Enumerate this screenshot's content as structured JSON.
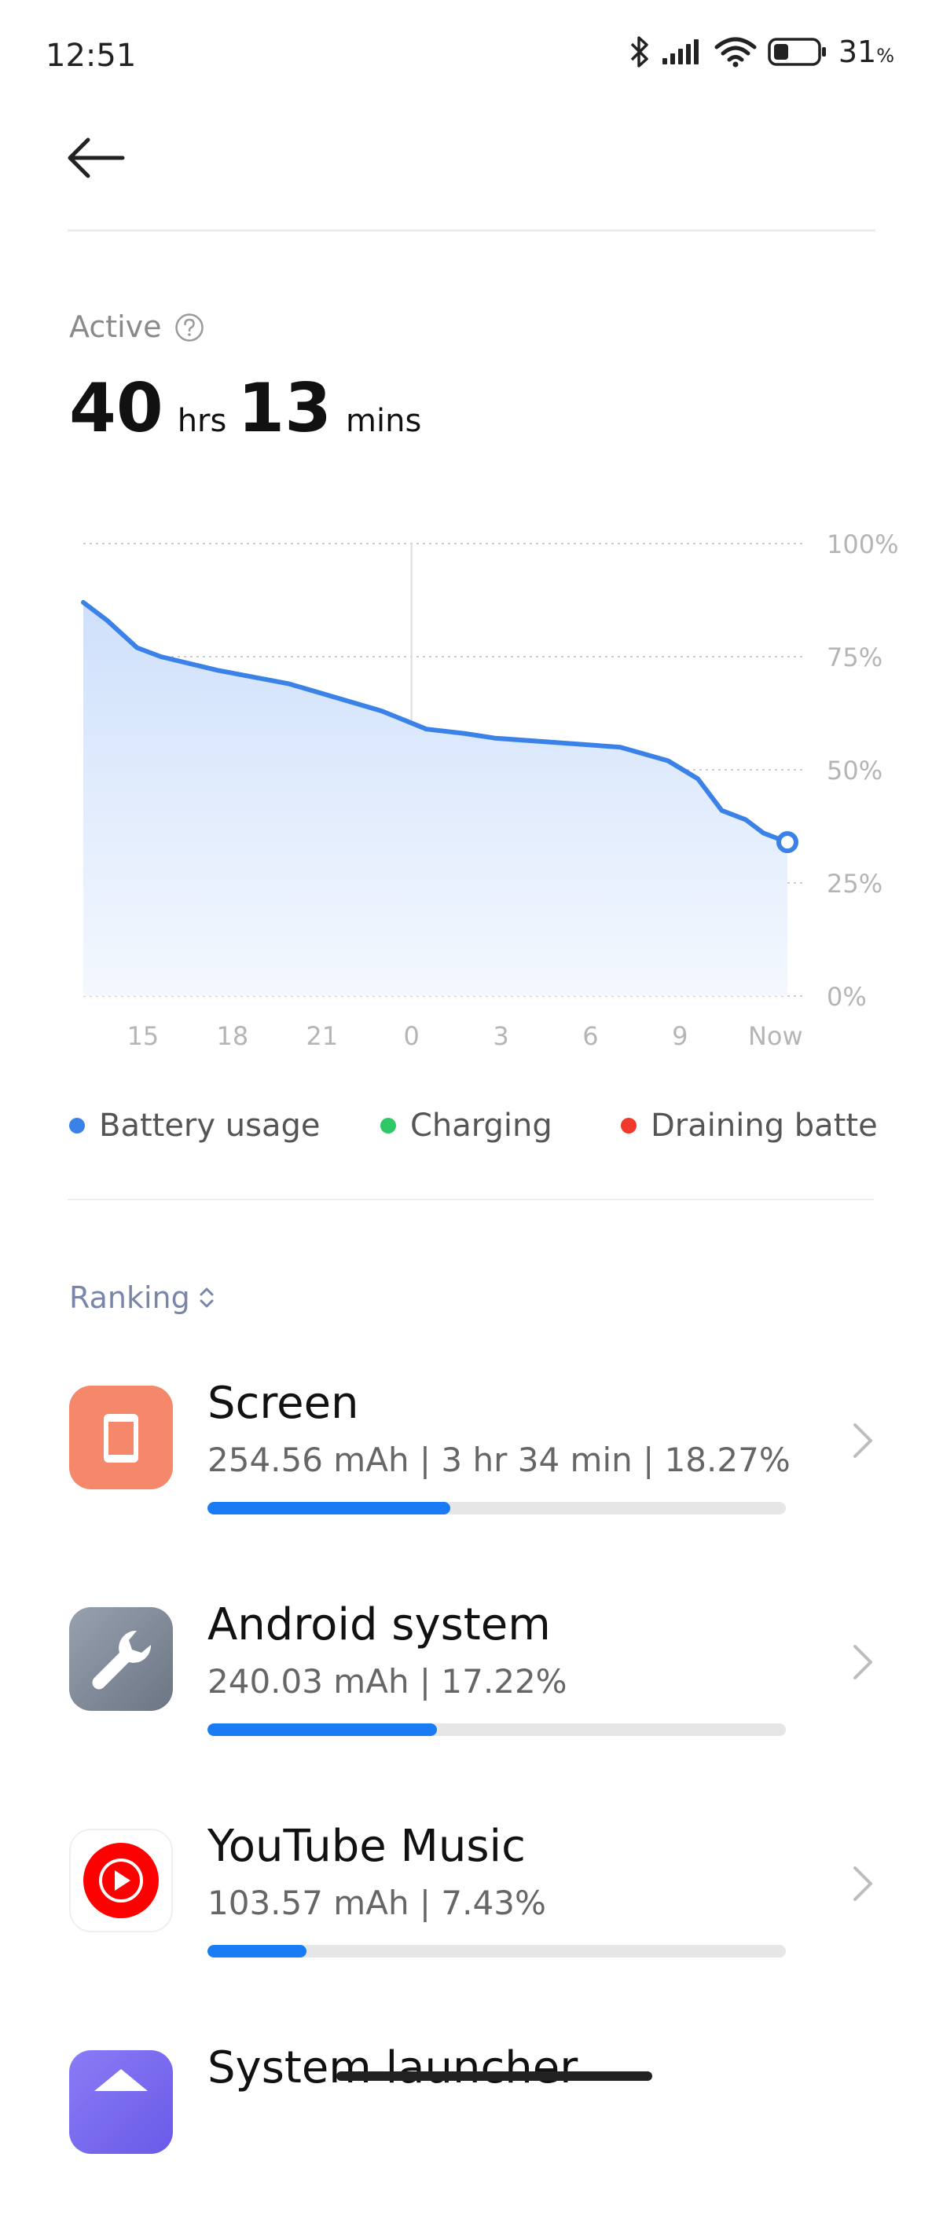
{
  "status_bar": {
    "time": "12:51",
    "battery_percent": "31",
    "battery_percent_sign": "%",
    "icons": [
      "bluetooth-icon",
      "signal-icon",
      "wifi-icon",
      "battery-icon"
    ]
  },
  "header": {
    "back_icon": "back-arrow-icon"
  },
  "active": {
    "label": "Active",
    "help_icon": "help-icon",
    "hours": "40",
    "hours_unit": "hrs",
    "minutes": "13",
    "minutes_unit": "mins"
  },
  "chart_data": {
    "type": "area",
    "x_tick_labels": [
      "15",
      "18",
      "21",
      "0",
      "3",
      "6",
      "9",
      "Now"
    ],
    "y_tick_labels": [
      "100%",
      "75%",
      "50%",
      "25%",
      "0%"
    ],
    "ylim": [
      0,
      100
    ],
    "grid": true,
    "series": [
      {
        "name": "Battery usage",
        "color": "#3b82e8",
        "points": [
          {
            "x": 13.0,
            "y": 87
          },
          {
            "x": 13.8,
            "y": 83
          },
          {
            "x": 14.8,
            "y": 77
          },
          {
            "x": 15.6,
            "y": 75
          },
          {
            "x": 17.5,
            "y": 72
          },
          {
            "x": 19.9,
            "y": 69
          },
          {
            "x": 23.0,
            "y": 63
          },
          {
            "x": 24.5,
            "y": 59
          },
          {
            "x": 25.8,
            "y": 58
          },
          {
            "x": 26.8,
            "y": 57
          },
          {
            "x": 31.0,
            "y": 55
          },
          {
            "x": 32.6,
            "y": 52
          },
          {
            "x": 33.6,
            "y": 48
          },
          {
            "x": 34.4,
            "y": 41
          },
          {
            "x": 35.2,
            "y": 39
          },
          {
            "x": 35.8,
            "y": 36
          },
          {
            "x": 36.6,
            "y": 34
          }
        ]
      }
    ],
    "x_range": [
      13.0,
      36.6
    ],
    "x_ticks": [
      15,
      18,
      21,
      24,
      27,
      30,
      33,
      36.2
    ],
    "divider_x": 24
  },
  "legend": [
    {
      "label": "Battery usage",
      "color": "#3b82e8"
    },
    {
      "label": "Charging",
      "color": "#2ec866"
    },
    {
      "label": "Draining batter",
      "color": "#f0382c"
    }
  ],
  "ranking": {
    "label": "Ranking",
    "sort_icon": "sort-updown-icon"
  },
  "apps": [
    {
      "name": "Screen",
      "detail": "254.56 mAh | 3 hr 34 min  | 18.27%",
      "fraction": 0.1827,
      "icon": "screen-icon",
      "icon_color": "#f5876a"
    },
    {
      "name": "Android system",
      "detail": "240.03 mAh | 17.22%",
      "fraction": 0.1722,
      "icon": "wrench-icon",
      "icon_color": "#7d8797"
    },
    {
      "name": "YouTube Music",
      "detail": "103.57 mAh | 7.43%",
      "fraction": 0.0743,
      "icon": "youtube-music-icon",
      "icon_color": "#ff0000"
    },
    {
      "name": "System launcher",
      "icon": "home-icon",
      "icon_color": "#7a6cf0"
    }
  ]
}
